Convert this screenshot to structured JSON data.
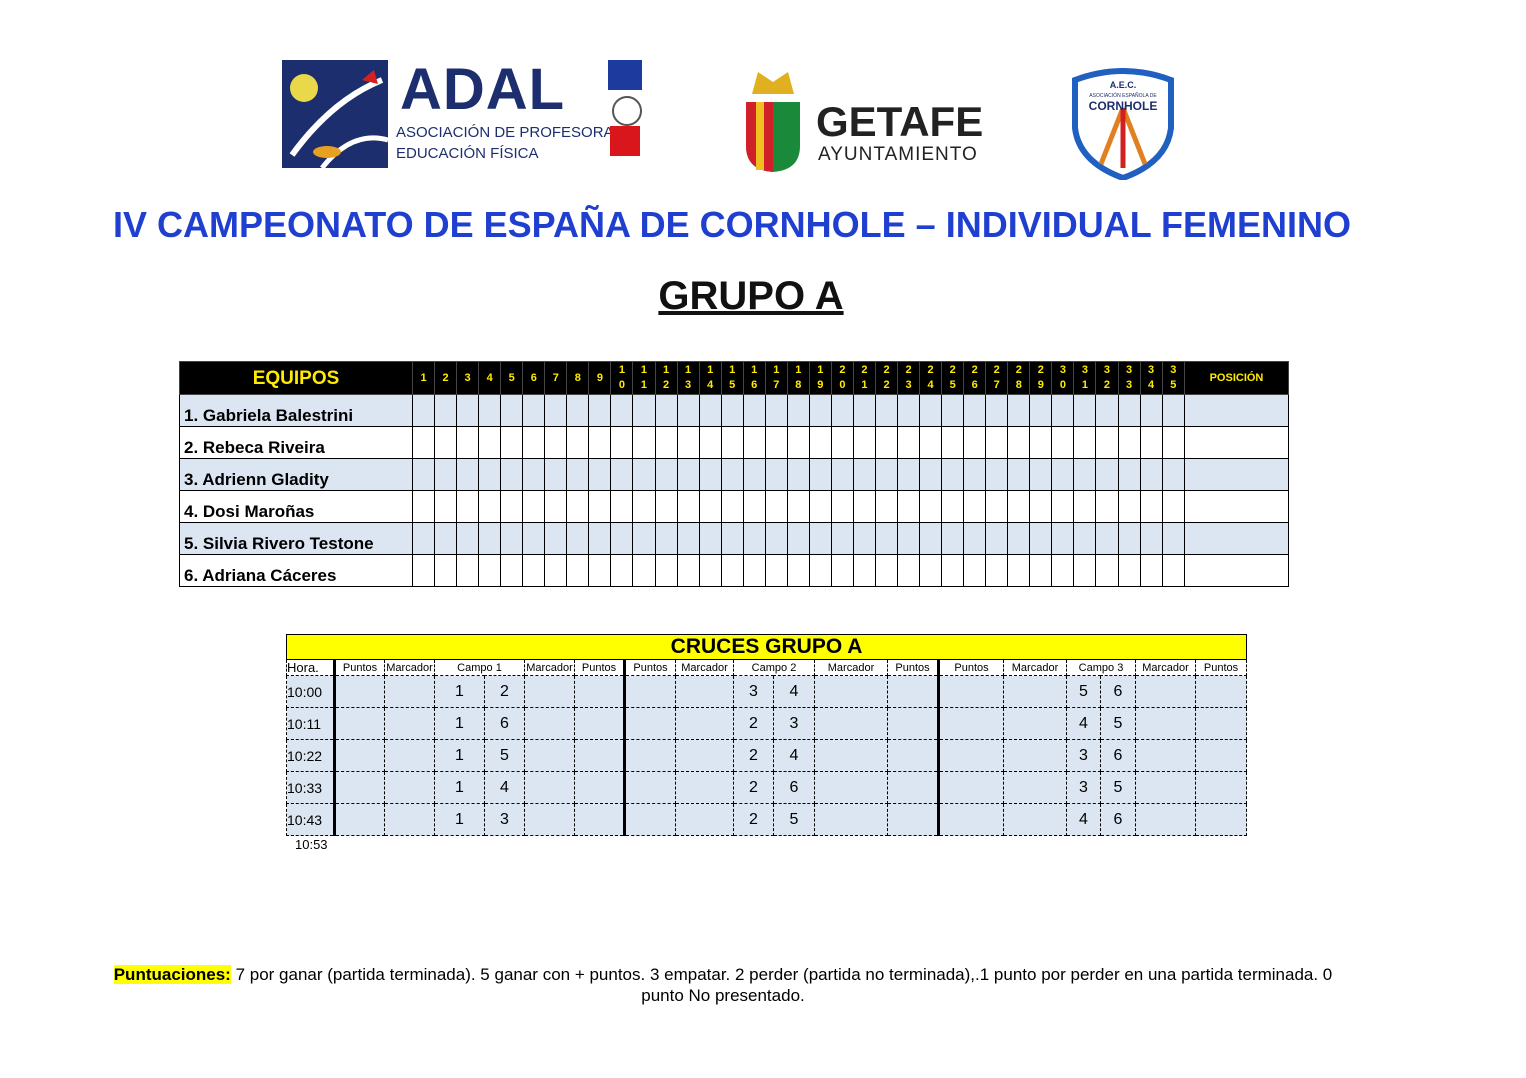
{
  "logos": {
    "adal": {
      "name": "ADAL",
      "line1": "ASOCIACIÓN DE PROFESORADO",
      "line2": "EDUCACIÓN FÍSICA"
    },
    "getafe": {
      "name": "GETAFE",
      "sub": "AYUNTAMIENTO"
    },
    "aec": {
      "top": "A.E.C.",
      "small": "ASOCIACIÓN ESPAÑOLA DE",
      "name": "CORNHOLE"
    }
  },
  "title": "IV CAMPEONATO DE ESPAÑA DE CORNHOLE – INDIVIDUAL FEMENINO",
  "group": "GRUPO A",
  "standings": {
    "header": "EQUIPOS",
    "position_header": "POSICIÓN",
    "round_count": 35,
    "teams": [
      "1. Gabriela Balestrini",
      "2. Rebeca Riveira",
      "3. Adrienn Gladity",
      "4. Dosi Maroñas",
      "5. Silvia Rivero Testone",
      "6. Adriana Cáceres"
    ]
  },
  "cruces": {
    "title": "CRUCES GRUPO A",
    "headers": [
      "Hora.",
      "Puntos",
      "Marcador",
      "Campo 1",
      "Marcador",
      "Puntos",
      "Puntos",
      "Marcador",
      "Campo 2",
      "Marcador",
      "Puntos",
      "Puntos",
      "Marcador",
      "Campo 3",
      "Marcador",
      "Puntos"
    ],
    "rows": [
      {
        "time": "10:00",
        "c1": [
          "1",
          "2"
        ],
        "c2": [
          "3",
          "4"
        ],
        "c3": [
          "5",
          "6"
        ]
      },
      {
        "time": "10:11",
        "c1": [
          "1",
          "6"
        ],
        "c2": [
          "2",
          "3"
        ],
        "c3": [
          "4",
          "5"
        ]
      },
      {
        "time": "10:22",
        "c1": [
          "1",
          "5"
        ],
        "c2": [
          "2",
          "4"
        ],
        "c3": [
          "3",
          "6"
        ]
      },
      {
        "time": "10:33",
        "c1": [
          "1",
          "4"
        ],
        "c2": [
          "2",
          "6"
        ],
        "c3": [
          "3",
          "5"
        ]
      },
      {
        "time": "10:43",
        "c1": [
          "1",
          "3"
        ],
        "c2": [
          "2",
          "5"
        ],
        "c3": [
          "4",
          "6"
        ]
      }
    ],
    "end_time": "10:53"
  },
  "footer": {
    "label": "Puntuaciones:",
    "text": " 7 por ganar (partida terminada). 5 ganar con + puntos. 3 empatar. 2 perder (partida no terminada),.1 punto por perder en una partida terminada. 0 punto No presentado."
  }
}
